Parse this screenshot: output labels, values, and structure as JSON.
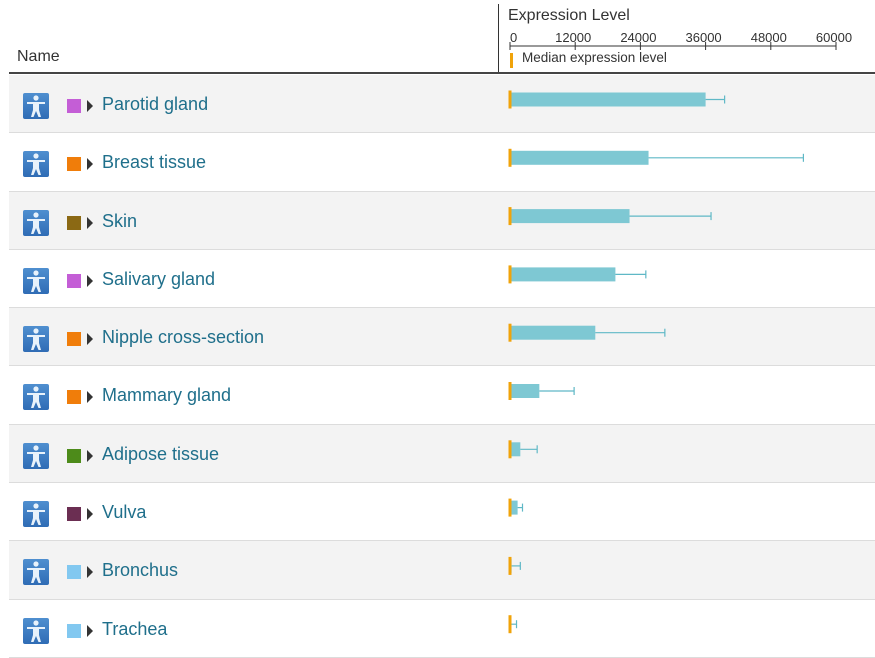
{
  "header": {
    "name_label": "Name",
    "expression_title": "Expression Level",
    "legend_label": "Median expression level"
  },
  "colors": {
    "bar": "#7ec8d3",
    "whisker": "#5fb8c6",
    "median": "#f0a30a"
  },
  "chart_data": {
    "type": "bar",
    "orientation": "horizontal",
    "title": "Expression Level",
    "xlim": [
      0,
      60000
    ],
    "xticks": [
      "0",
      "12000",
      "24000",
      "36000",
      "48000",
      "60000"
    ],
    "categories": [
      "Parotid gland",
      "Breast tissue",
      "Skin",
      "Salivary gland",
      "Nipple cross-section",
      "Mammary gland",
      "Adipose tissue",
      "Vulva",
      "Bronchus",
      "Trachea"
    ],
    "swatch_colors": [
      "#c45ed6",
      "#f07d0a",
      "#8b6914",
      "#c45ed6",
      "#f07d0a",
      "#f07d0a",
      "#4d8b1a",
      "#6b2e52",
      "#82c8f0",
      "#82c8f0"
    ],
    "values": [
      36000,
      25500,
      22000,
      19400,
      15700,
      5400,
      1900,
      1400,
      300,
      100
    ],
    "error_upper": [
      39500,
      54000,
      37000,
      25000,
      28500,
      11800,
      5000,
      2300,
      1900,
      1200
    ],
    "median": [
      0,
      0,
      0,
      0,
      0,
      0,
      0,
      0,
      0,
      0
    ],
    "legend": [
      "Median expression level"
    ]
  }
}
